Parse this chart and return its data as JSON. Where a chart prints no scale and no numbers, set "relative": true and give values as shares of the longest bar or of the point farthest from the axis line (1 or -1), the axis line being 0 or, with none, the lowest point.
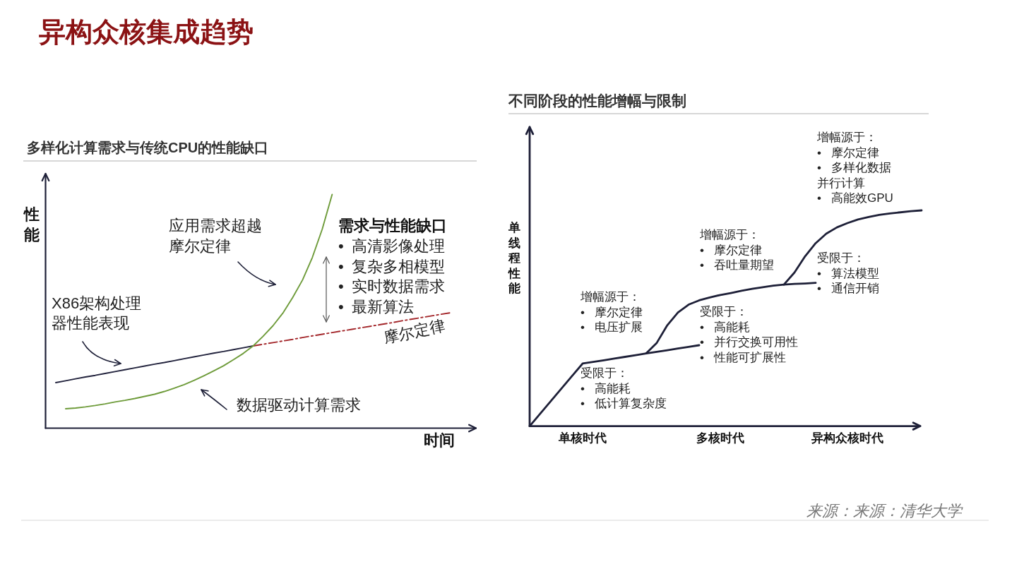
{
  "chart_data": [
    {
      "type": "line",
      "title": "异构众核集成趋势",
      "subtitle": "多样化计算需求与传统CPU的性能缺口",
      "xlabel": "时间",
      "ylabel": "性能",
      "relative": true,
      "categories": [
        null,
        null,
        null,
        null,
        null,
        null,
        null,
        null,
        null,
        null,
        null,
        null,
        null,
        null,
        null,
        null,
        null,
        null,
        null,
        null,
        null,
        null,
        null,
        null,
        null,
        null,
        null,
        null,
        null,
        null,
        null,
        null,
        null,
        null,
        null,
        null,
        null,
        null,
        null,
        null,
        null
      ],
      "series": [
        {
          "name": "X86架构处理器性能表现",
          "color": "#22233d",
          "values": [
            0.195,
            0.203,
            0.211,
            0.219,
            0.226,
            0.234,
            0.242,
            0.25,
            0.258,
            0.266,
            0.274,
            0.281,
            0.289,
            0.297,
            0.305,
            0.313,
            0.321,
            0.328,
            0.336,
            0.344,
            0.352,
            null,
            null,
            null,
            null,
            null,
            null,
            null,
            null,
            null,
            null,
            null,
            null,
            null,
            null,
            null,
            null,
            null,
            null,
            null,
            null
          ]
        },
        {
          "name": "摩尔定律",
          "color": "#a3262a",
          "line_style": "dashed",
          "values": [
            null,
            null,
            null,
            null,
            null,
            null,
            null,
            null,
            null,
            null,
            null,
            null,
            null,
            null,
            null,
            null,
            null,
            null,
            null,
            null,
            0.352,
            0.359,
            0.366,
            0.373,
            0.38,
            0.388,
            0.395,
            0.402,
            0.409,
            0.416,
            0.423,
            0.43,
            0.437,
            0.444,
            0.451,
            0.459,
            0.466,
            0.473,
            0.48,
            0.487,
            0.494
          ]
        },
        {
          "color": "#6e9b3a",
          "values": [
            null,
            0.083,
            0.086,
            0.091,
            0.097,
            0.104,
            0.112,
            0.119,
            0.127,
            0.136,
            0.145,
            0.157,
            0.171,
            0.186,
            0.204,
            0.224,
            0.245,
            0.267,
            0.293,
            0.32,
            0.352,
            0.393,
            0.438,
            0.492,
            0.559,
            0.634,
            0.731,
            0.852,
            1.0,
            null,
            null,
            null,
            null,
            null,
            null,
            null,
            null,
            null,
            null,
            null,
            null
          ]
        }
      ],
      "annotations": [
        "应用需求超越摩尔定律",
        "需求与性能缺口",
        "• 高清影像处理\n• 复杂多相模型\n• 实时数据需求\n• 最新算法",
        "数据驱动计算需求"
      ]
    },
    {
      "type": "line",
      "title": "不同阶段的性能增幅与限制",
      "ylabel": "单线程性能",
      "relative": true,
      "categories": [
        null,
        null,
        null,
        null,
        null,
        "单核时代",
        null,
        null,
        null,
        null,
        null,
        null,
        null,
        null,
        null,
        null,
        null,
        null,
        "多核时代",
        null,
        null,
        null,
        null,
        null,
        null,
        null,
        null,
        null,
        null,
        null,
        "异构众核时代",
        null,
        null,
        null,
        null,
        null,
        null,
        null
      ],
      "series": [
        {
          "color": "#1e2038",
          "values": [
            0,
            0.058,
            0.116,
            0.174,
            0.232,
            0.29,
            0.298,
            0.305,
            0.313,
            0.321,
            0.329,
            0.337,
            0.344,
            0.352,
            0.36,
            0.367,
            0.375,
            null,
            null,
            null,
            null,
            null,
            null,
            null,
            null,
            null,
            null,
            null,
            null,
            null,
            null,
            null,
            null,
            null,
            null,
            null,
            null,
            null
          ]
        },
        {
          "color": "#1e2038",
          "values": [
            null,
            null,
            null,
            null,
            null,
            null,
            null,
            null,
            null,
            null,
            null,
            0.337,
            0.386,
            0.468,
            0.527,
            0.563,
            0.583,
            0.596,
            0.608,
            0.617,
            0.627,
            0.636,
            0.644,
            0.651,
            0.656,
            0.659,
            0.661,
            0.664,
            null,
            null,
            null,
            null,
            null,
            null,
            null,
            null,
            null,
            null
          ]
        },
        {
          "color": "#1e2038",
          "values": [
            null,
            null,
            null,
            null,
            null,
            null,
            null,
            null,
            null,
            null,
            null,
            null,
            null,
            null,
            null,
            null,
            null,
            null,
            null,
            null,
            null,
            null,
            null,
            null,
            0.656,
            0.712,
            0.787,
            0.848,
            0.892,
            0.921,
            0.941,
            0.958,
            0.969,
            0.979,
            0.986,
            0.991,
            0.996,
            1.0
          ]
        }
      ],
      "annotations": [
        "增幅源于：\n• 摩尔定律\n• 电压扩展",
        "受限于：\n• 高能耗\n• 低计算复杂度",
        "增幅源于：\n• 摩尔定律\n• 吞吐量期望",
        "受限于：\n• 高能耗\n• 并行交换可用性\n• 性能可扩展性",
        "增幅源于：\n• 摩尔定律\n• 多样化数据并行计算\n• 高能效GPU",
        "受限于：\n• 算法模型\n• 通信开销",
        "来源：来源：清华大学"
      ]
    }
  ]
}
